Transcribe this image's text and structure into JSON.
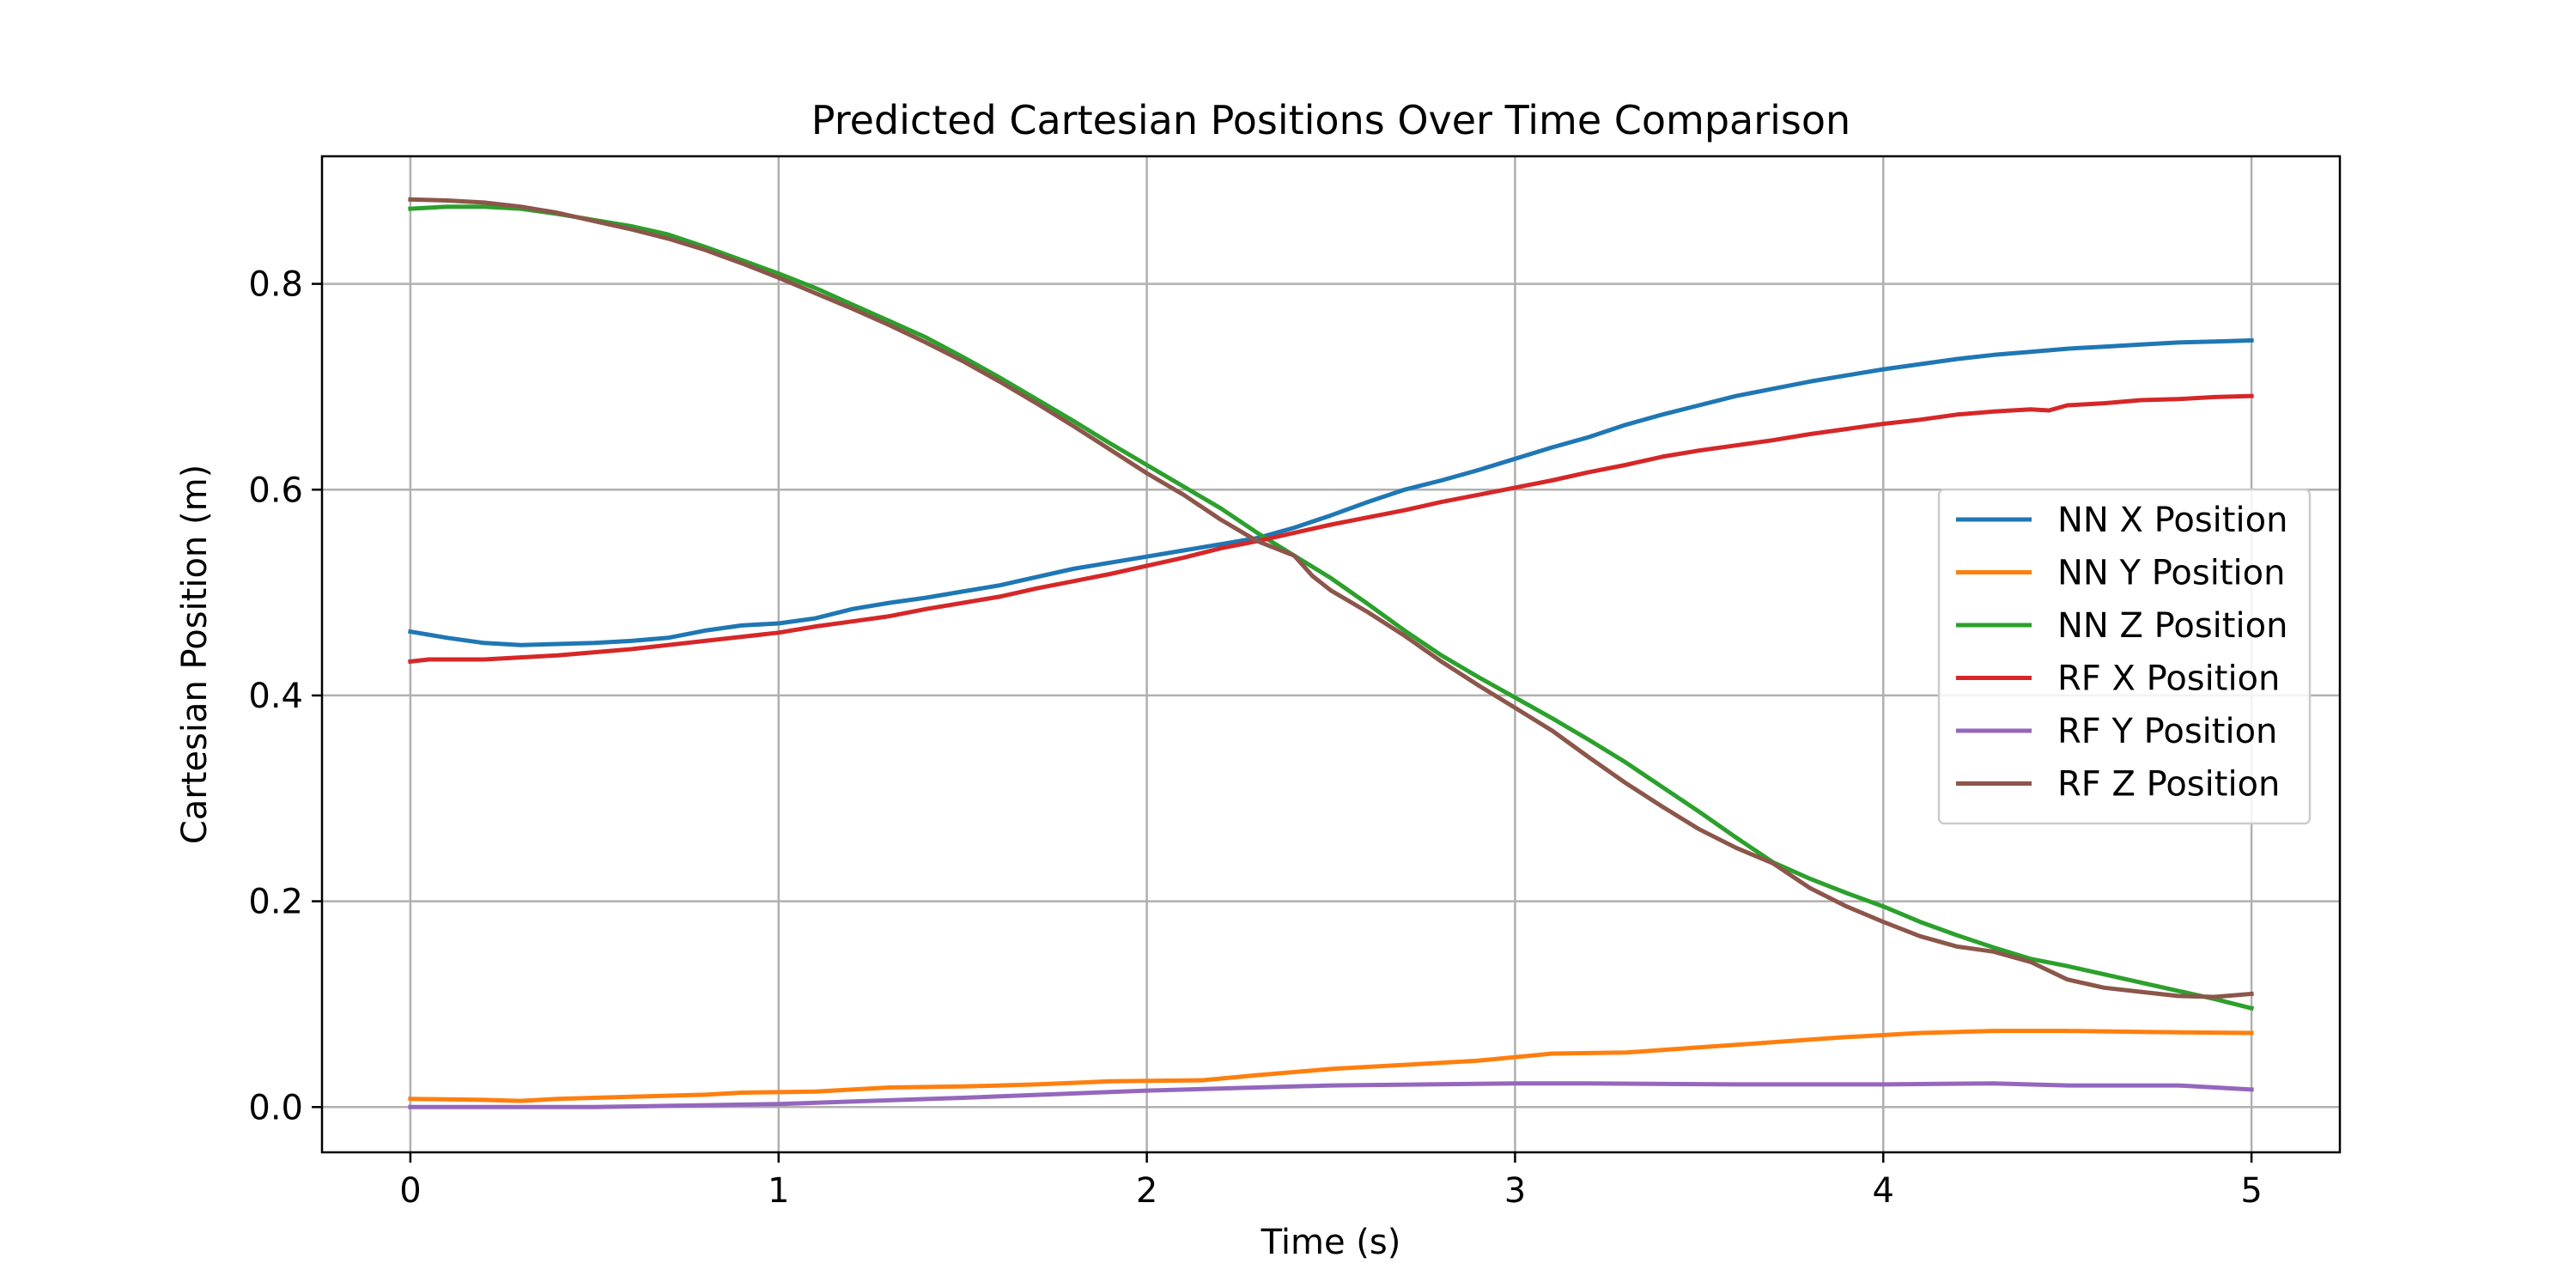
{
  "chart_data": {
    "type": "line",
    "title": "Predicted Cartesian Positions Over Time Comparison",
    "xlabel": "Time (s)",
    "ylabel": "Cartesian Position (m)",
    "xlim": [
      -0.24,
      5.24
    ],
    "ylim": [
      -0.044,
      0.924
    ],
    "xticks": [
      0,
      1,
      2,
      3,
      4,
      5
    ],
    "yticks": [
      0.0,
      0.2,
      0.4,
      0.6,
      0.8
    ],
    "xtick_labels": [
      "0",
      "1",
      "2",
      "3",
      "4",
      "5"
    ],
    "ytick_labels": [
      "0.0",
      "0.2",
      "0.4",
      "0.6",
      "0.8"
    ],
    "grid": true,
    "legend_position": "center-right",
    "series": [
      {
        "name": "NN X Position",
        "color": "#1f77b4",
        "points": [
          [
            0,
            0.462
          ],
          [
            0.1,
            0.456
          ],
          [
            0.2,
            0.451
          ],
          [
            0.3,
            0.449
          ],
          [
            0.4,
            0.45
          ],
          [
            0.5,
            0.451
          ],
          [
            0.6,
            0.453
          ],
          [
            0.7,
            0.456
          ],
          [
            0.8,
            0.463
          ],
          [
            0.9,
            0.468
          ],
          [
            1.0,
            0.47
          ],
          [
            1.1,
            0.475
          ],
          [
            1.2,
            0.484
          ],
          [
            1.3,
            0.49
          ],
          [
            1.4,
            0.495
          ],
          [
            1.5,
            0.501
          ],
          [
            1.6,
            0.507
          ],
          [
            1.7,
            0.515
          ],
          [
            1.8,
            0.523
          ],
          [
            1.9,
            0.529
          ],
          [
            2.0,
            0.535
          ],
          [
            2.1,
            0.541
          ],
          [
            2.2,
            0.547
          ],
          [
            2.3,
            0.553
          ],
          [
            2.4,
            0.563
          ],
          [
            2.5,
            0.575
          ],
          [
            2.6,
            0.588
          ],
          [
            2.7,
            0.6
          ],
          [
            2.8,
            0.609
          ],
          [
            2.9,
            0.619
          ],
          [
            3.0,
            0.63
          ],
          [
            3.1,
            0.641
          ],
          [
            3.2,
            0.651
          ],
          [
            3.3,
            0.663
          ],
          [
            3.4,
            0.673
          ],
          [
            3.5,
            0.682
          ],
          [
            3.6,
            0.691
          ],
          [
            3.7,
            0.698
          ],
          [
            3.8,
            0.705
          ],
          [
            3.9,
            0.711
          ],
          [
            4.0,
            0.717
          ],
          [
            4.1,
            0.722
          ],
          [
            4.2,
            0.727
          ],
          [
            4.3,
            0.731
          ],
          [
            4.4,
            0.734
          ],
          [
            4.5,
            0.737
          ],
          [
            4.6,
            0.739
          ],
          [
            4.7,
            0.741
          ],
          [
            4.8,
            0.743
          ],
          [
            4.9,
            0.744
          ],
          [
            5.0,
            0.745
          ]
        ]
      },
      {
        "name": "NN Y Position",
        "color": "#ff7f0e",
        "points": [
          [
            0,
            0.008
          ],
          [
            0.2,
            0.007
          ],
          [
            0.3,
            0.006
          ],
          [
            0.4,
            0.008
          ],
          [
            0.6,
            0.01
          ],
          [
            0.8,
            0.012
          ],
          [
            0.9,
            0.014
          ],
          [
            1.1,
            0.015
          ],
          [
            1.3,
            0.019
          ],
          [
            1.5,
            0.02
          ],
          [
            1.7,
            0.022
          ],
          [
            1.9,
            0.025
          ],
          [
            2.15,
            0.026
          ],
          [
            2.3,
            0.031
          ],
          [
            2.5,
            0.037
          ],
          [
            2.7,
            0.041
          ],
          [
            2.9,
            0.045
          ],
          [
            3.1,
            0.052
          ],
          [
            3.3,
            0.053
          ],
          [
            3.5,
            0.058
          ],
          [
            3.7,
            0.063
          ],
          [
            3.9,
            0.068
          ],
          [
            4.1,
            0.072
          ],
          [
            4.3,
            0.074
          ],
          [
            4.5,
            0.074
          ],
          [
            4.7,
            0.073
          ],
          [
            5.0,
            0.072
          ]
        ]
      },
      {
        "name": "NN Z Position",
        "color": "#2ca02c",
        "points": [
          [
            0,
            0.873
          ],
          [
            0.1,
            0.875
          ],
          [
            0.2,
            0.875
          ],
          [
            0.3,
            0.873
          ],
          [
            0.4,
            0.868
          ],
          [
            0.5,
            0.862
          ],
          [
            0.6,
            0.856
          ],
          [
            0.7,
            0.848
          ],
          [
            0.8,
            0.836
          ],
          [
            0.9,
            0.823
          ],
          [
            1.0,
            0.81
          ],
          [
            1.1,
            0.796
          ],
          [
            1.2,
            0.78
          ],
          [
            1.3,
            0.764
          ],
          [
            1.4,
            0.748
          ],
          [
            1.5,
            0.729
          ],
          [
            1.6,
            0.709
          ],
          [
            1.7,
            0.688
          ],
          [
            1.8,
            0.667
          ],
          [
            1.9,
            0.645
          ],
          [
            2.0,
            0.624
          ],
          [
            2.1,
            0.603
          ],
          [
            2.2,
            0.582
          ],
          [
            2.3,
            0.558
          ],
          [
            2.4,
            0.536
          ],
          [
            2.5,
            0.514
          ],
          [
            2.6,
            0.489
          ],
          [
            2.7,
            0.463
          ],
          [
            2.8,
            0.439
          ],
          [
            2.9,
            0.418
          ],
          [
            3.0,
            0.398
          ],
          [
            3.1,
            0.378
          ],
          [
            3.2,
            0.357
          ],
          [
            3.3,
            0.335
          ],
          [
            3.4,
            0.311
          ],
          [
            3.5,
            0.287
          ],
          [
            3.6,
            0.262
          ],
          [
            3.7,
            0.238
          ],
          [
            3.8,
            0.222
          ],
          [
            3.9,
            0.208
          ],
          [
            4.0,
            0.195
          ],
          [
            4.1,
            0.18
          ],
          [
            4.2,
            0.167
          ],
          [
            4.3,
            0.155
          ],
          [
            4.4,
            0.144
          ],
          [
            4.5,
            0.137
          ],
          [
            4.6,
            0.129
          ],
          [
            4.7,
            0.121
          ],
          [
            4.8,
            0.113
          ],
          [
            4.9,
            0.105
          ],
          [
            5.0,
            0.096
          ]
        ]
      },
      {
        "name": "RF X Position",
        "color": "#d62728",
        "points": [
          [
            0,
            0.433
          ],
          [
            0.05,
            0.435
          ],
          [
            0.2,
            0.435
          ],
          [
            0.3,
            0.437
          ],
          [
            0.4,
            0.439
          ],
          [
            0.5,
            0.442
          ],
          [
            0.6,
            0.445
          ],
          [
            0.7,
            0.449
          ],
          [
            0.8,
            0.453
          ],
          [
            0.9,
            0.457
          ],
          [
            1.0,
            0.461
          ],
          [
            1.1,
            0.467
          ],
          [
            1.2,
            0.472
          ],
          [
            1.3,
            0.477
          ],
          [
            1.4,
            0.484
          ],
          [
            1.5,
            0.49
          ],
          [
            1.6,
            0.496
          ],
          [
            1.7,
            0.504
          ],
          [
            1.8,
            0.511
          ],
          [
            1.9,
            0.518
          ],
          [
            2.0,
            0.526
          ],
          [
            2.1,
            0.534
          ],
          [
            2.2,
            0.543
          ],
          [
            2.3,
            0.55
          ],
          [
            2.4,
            0.558
          ],
          [
            2.5,
            0.566
          ],
          [
            2.6,
            0.573
          ],
          [
            2.7,
            0.58
          ],
          [
            2.8,
            0.588
          ],
          [
            2.9,
            0.595
          ],
          [
            3.0,
            0.602
          ],
          [
            3.1,
            0.609
          ],
          [
            3.2,
            0.617
          ],
          [
            3.3,
            0.624
          ],
          [
            3.4,
            0.632
          ],
          [
            3.5,
            0.638
          ],
          [
            3.6,
            0.643
          ],
          [
            3.7,
            0.648
          ],
          [
            3.8,
            0.654
          ],
          [
            3.9,
            0.659
          ],
          [
            4.0,
            0.664
          ],
          [
            4.1,
            0.668
          ],
          [
            4.2,
            0.673
          ],
          [
            4.3,
            0.676
          ],
          [
            4.4,
            0.678
          ],
          [
            4.45,
            0.677
          ],
          [
            4.5,
            0.682
          ],
          [
            4.6,
            0.684
          ],
          [
            4.7,
            0.687
          ],
          [
            4.8,
            0.688
          ],
          [
            4.9,
            0.69
          ],
          [
            5.0,
            0.691
          ]
        ]
      },
      {
        "name": "RF Y Position",
        "color": "#9467bd",
        "points": [
          [
            0,
            0.0
          ],
          [
            0.5,
            0.0
          ],
          [
            1.0,
            0.003
          ],
          [
            1.5,
            0.009
          ],
          [
            2.0,
            0.016
          ],
          [
            2.5,
            0.021
          ],
          [
            3.0,
            0.023
          ],
          [
            3.2,
            0.023
          ],
          [
            3.6,
            0.022
          ],
          [
            4.0,
            0.022
          ],
          [
            4.3,
            0.023
          ],
          [
            4.5,
            0.021
          ],
          [
            4.8,
            0.021
          ],
          [
            5.0,
            0.017
          ]
        ]
      },
      {
        "name": "RF Z Position",
        "color": "#8c564b",
        "points": [
          [
            0,
            0.882
          ],
          [
            0.1,
            0.881
          ],
          [
            0.2,
            0.879
          ],
          [
            0.3,
            0.875
          ],
          [
            0.4,
            0.869
          ],
          [
            0.5,
            0.861
          ],
          [
            0.6,
            0.853
          ],
          [
            0.7,
            0.844
          ],
          [
            0.8,
            0.833
          ],
          [
            0.9,
            0.82
          ],
          [
            1.0,
            0.806
          ],
          [
            1.1,
            0.791
          ],
          [
            1.2,
            0.776
          ],
          [
            1.3,
            0.76
          ],
          [
            1.4,
            0.743
          ],
          [
            1.5,
            0.725
          ],
          [
            1.6,
            0.705
          ],
          [
            1.7,
            0.684
          ],
          [
            1.8,
            0.662
          ],
          [
            1.9,
            0.639
          ],
          [
            2.0,
            0.616
          ],
          [
            2.1,
            0.595
          ],
          [
            2.2,
            0.571
          ],
          [
            2.3,
            0.55
          ],
          [
            2.4,
            0.536
          ],
          [
            2.45,
            0.516
          ],
          [
            2.5,
            0.502
          ],
          [
            2.6,
            0.481
          ],
          [
            2.7,
            0.458
          ],
          [
            2.8,
            0.433
          ],
          [
            2.9,
            0.41
          ],
          [
            3.0,
            0.388
          ],
          [
            3.1,
            0.366
          ],
          [
            3.2,
            0.34
          ],
          [
            3.3,
            0.315
          ],
          [
            3.4,
            0.292
          ],
          [
            3.5,
            0.27
          ],
          [
            3.6,
            0.252
          ],
          [
            3.7,
            0.237
          ],
          [
            3.8,
            0.213
          ],
          [
            3.9,
            0.195
          ],
          [
            4.0,
            0.18
          ],
          [
            4.1,
            0.166
          ],
          [
            4.2,
            0.156
          ],
          [
            4.3,
            0.151
          ],
          [
            4.4,
            0.141
          ],
          [
            4.5,
            0.124
          ],
          [
            4.6,
            0.116
          ],
          [
            4.7,
            0.112
          ],
          [
            4.8,
            0.108
          ],
          [
            4.9,
            0.107
          ],
          [
            5.0,
            0.11
          ]
        ]
      }
    ]
  }
}
